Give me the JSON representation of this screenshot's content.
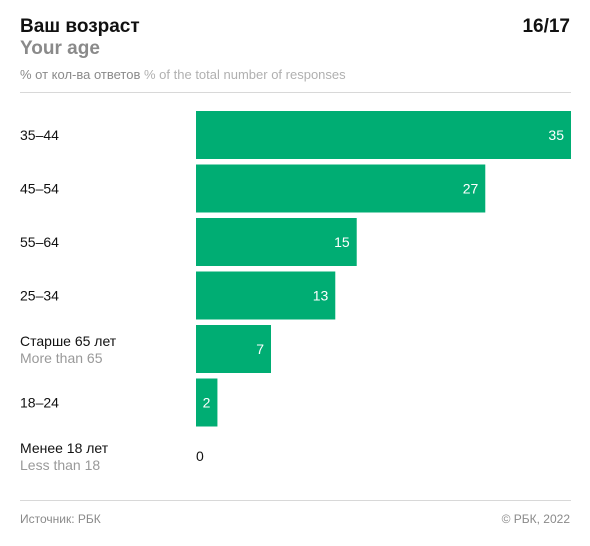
{
  "header": {
    "title": "Ваш возраст",
    "subtitle": "Your age",
    "page": "16/17",
    "units_ru": "% от кол-ва ответов",
    "units_en": "% of the total number of responses"
  },
  "footer": {
    "source": "Источник: РБК",
    "copyright": "© РБК, 2022"
  },
  "colors": {
    "bar": "#00ad73",
    "label_primary": "#111111",
    "label_secondary": "#999999"
  },
  "chart_data": {
    "type": "bar",
    "orientation": "horizontal",
    "categories": [
      {
        "ru": "35–44",
        "en": ""
      },
      {
        "ru": "45–54",
        "en": ""
      },
      {
        "ru": "55–64",
        "en": ""
      },
      {
        "ru": "25–34",
        "en": ""
      },
      {
        "ru": "Старше 65 лет",
        "en": "More than 65"
      },
      {
        "ru": "18–24",
        "en": ""
      },
      {
        "ru": "Менее 18 лет",
        "en": "Less than 18"
      }
    ],
    "values": [
      35,
      27,
      15,
      13,
      7,
      2,
      0
    ],
    "xlim": [
      0,
      35
    ],
    "grid": false,
    "legend": "none"
  }
}
